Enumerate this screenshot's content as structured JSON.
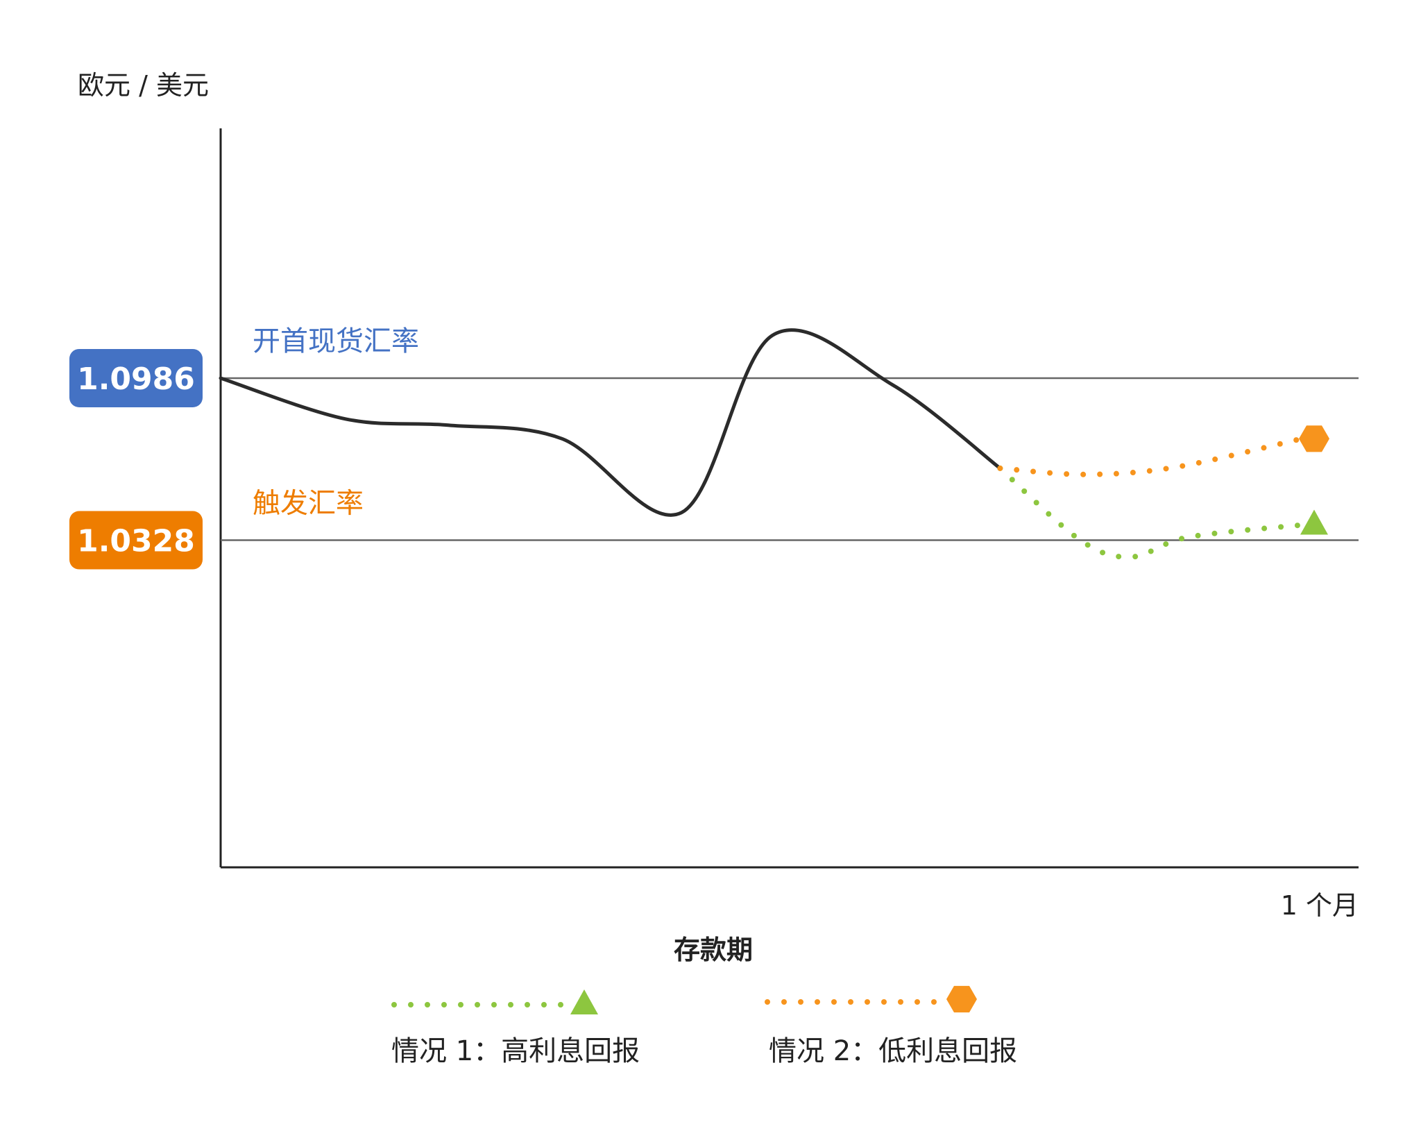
{
  "chart_data": {
    "type": "line",
    "title": "",
    "ylabel": "欧元 / 美元",
    "xlabel": "存款期",
    "x_end_label": "1 个月",
    "ylim": [
      0.9,
      1.2
    ],
    "reference_lines": [
      {
        "name": "开首现货汇率",
        "value": 1.0986,
        "value_label": "1.0986",
        "color": "#4472c4"
      },
      {
        "name": "触发汇率",
        "value": 1.0328,
        "value_label": "1.0328",
        "color": "#ee7d00"
      }
    ],
    "series": [
      {
        "name": "",
        "style": "solid",
        "color": "#2b2b2b",
        "points": [
          [
            0,
            1.0986
          ],
          [
            0.11,
            1.082
          ],
          [
            0.2,
            1.0795
          ],
          [
            0.3,
            1.074
          ],
          [
            0.405,
            1.044
          ],
          [
            0.485,
            1.116
          ],
          [
            0.59,
            1.096
          ],
          [
            0.685,
            1.062
          ]
        ]
      },
      {
        "name": "情况 1：高利息回报",
        "style": "dotted",
        "color": "#8dc63f",
        "marker": "triangle",
        "points": [
          [
            0.685,
            1.062
          ],
          [
            0.755,
            1.033
          ],
          [
            0.8,
            1.026
          ],
          [
            0.85,
            1.034
          ],
          [
            0.95,
            1.039
          ]
        ]
      },
      {
        "name": "情况 2：低利息回报",
        "style": "dotted",
        "color": "#f7941d",
        "marker": "hexagon",
        "points": [
          [
            0.685,
            1.062
          ],
          [
            0.76,
            1.0595
          ],
          [
            0.84,
            1.0625
          ],
          [
            0.95,
            1.074
          ]
        ]
      }
    ],
    "legend": {
      "placement": "bottom",
      "items": [
        {
          "label": "情况 1：高利息回报",
          "color": "#8dc63f",
          "marker": "triangle"
        },
        {
          "label": "情况 2：低利息回报",
          "color": "#f7941d",
          "marker": "hexagon"
        }
      ]
    },
    "grid": false
  }
}
